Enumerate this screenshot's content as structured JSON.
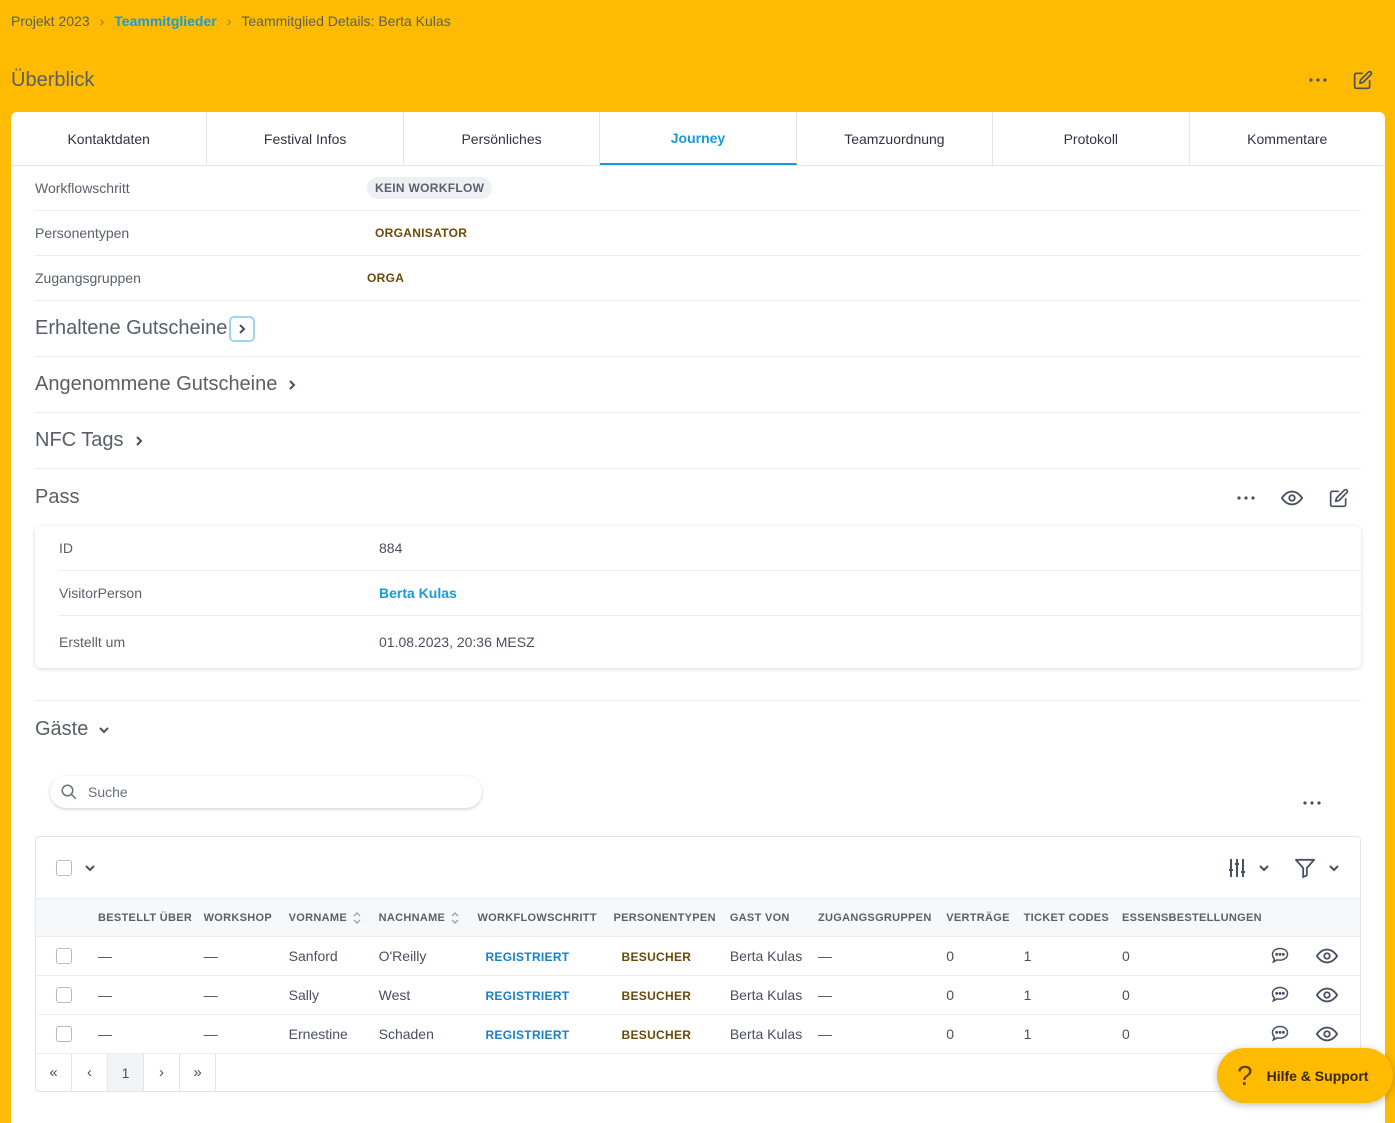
{
  "breadcrumb": {
    "items": [
      "Projekt 2023",
      "Teammitglieder",
      "Teammitglied Details: Berta Kulas"
    ]
  },
  "page": {
    "title": "Überblick"
  },
  "tabs": [
    "Kontaktdaten",
    "Festival Infos",
    "Persönliches",
    "Journey",
    "Teamzuordnung",
    "Protokoll",
    "Kommentare"
  ],
  "active_tab": "Journey",
  "details": [
    {
      "label": "Workflowschritt",
      "value": "KEIN WORKFLOW"
    },
    {
      "label": "Personentypen",
      "value": "ORGANISATOR"
    },
    {
      "label": "Zugangsgruppen",
      "value": "ORGA"
    }
  ],
  "sections": {
    "erhaltene": "Erhaltene Gutscheine",
    "angenommene": "Angenommene Gutscheine",
    "nfc": "NFC Tags",
    "pass": "Pass",
    "gaeste": "Gäste"
  },
  "pass": {
    "rows": [
      {
        "label": "ID",
        "value": "884"
      },
      {
        "label": "VisitorPerson",
        "value": "Berta Kulas"
      },
      {
        "label": "Erstellt um",
        "value": "01.08.2023, 20:36 MESZ"
      }
    ]
  },
  "search": {
    "placeholder": "Suche"
  },
  "table": {
    "columns": [
      "BESTELLT ÜBER",
      "WORKSHOP",
      "VORNAME",
      "NACHNAME",
      "WORKFLOWSCHRITT",
      "PERSONENTYPEN",
      "GAST VON",
      "ZUGANGSGRUPPEN",
      "VERTRÄGE",
      "TICKET CODES",
      "ESSENSBESTELLUNGEN"
    ],
    "rows": [
      {
        "bestellt": "—",
        "workshop": "—",
        "vorname": "Sanford",
        "nachname": "O'Reilly",
        "workflow": "REGISTRIERT",
        "typ": "BESUCHER",
        "gast_von": "Berta Kulas",
        "gruppen": "—",
        "vertraege": "0",
        "tickets": "1",
        "essen": "0"
      },
      {
        "bestellt": "—",
        "workshop": "—",
        "vorname": "Sally",
        "nachname": "West",
        "workflow": "REGISTRIERT",
        "typ": "BESUCHER",
        "gast_von": "Berta Kulas",
        "gruppen": "—",
        "vertraege": "0",
        "tickets": "1",
        "essen": "0"
      },
      {
        "bestellt": "—",
        "workshop": "—",
        "vorname": "Ernestine",
        "nachname": "Schaden",
        "workflow": "REGISTRIERT",
        "typ": "BESUCHER",
        "gast_von": "Berta Kulas",
        "gruppen": "—",
        "vertraege": "0",
        "tickets": "1",
        "essen": "0"
      }
    ]
  },
  "pager": {
    "first": "«",
    "prev": "‹",
    "current": "1",
    "next": "›",
    "last": "»"
  },
  "help": {
    "label": "Hilfe & Support",
    "icon": "?"
  },
  "colors": {
    "brand": "#FEBB02",
    "accent": "#1a9ad6"
  }
}
